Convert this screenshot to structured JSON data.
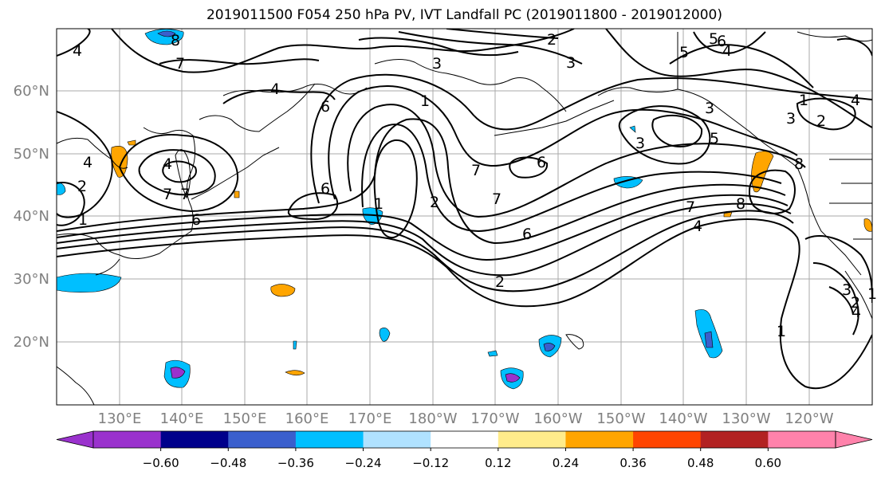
{
  "title": "2019011500 F054 250 hPa PV, IVT Landfall PC (2019011800 - 2019012000)",
  "map": {
    "lon_ticks": [
      "130°E",
      "140°E",
      "150°E",
      "160°E",
      "170°E",
      "180°W",
      "170°W",
      "160°W",
      "150°W",
      "140°W",
      "130°W",
      "120°W"
    ],
    "lat_ticks": [
      "60°N",
      "50°N",
      "40°N",
      "30°N",
      "20°N"
    ],
    "contour_color": "#000000",
    "grid": true,
    "contour_labels": [
      "2",
      "4",
      "3",
      "3",
      "1",
      "5",
      "4",
      "7",
      "8",
      "7",
      "4",
      "6",
      "1",
      "2",
      "6",
      "6",
      "7",
      "7",
      "6",
      "2",
      "4",
      "3",
      "5",
      "3",
      "8",
      "7",
      "4",
      "2",
      "1",
      "1",
      "4",
      "1",
      "2",
      "3",
      "2",
      "1",
      "4",
      "3",
      "5",
      "6",
      "6",
      "7",
      "8",
      "4"
    ]
  },
  "colorbar": {
    "colors": [
      "#9a32cd",
      "#00008b",
      "#3a5fcd",
      "#00bfff",
      "#b0e2ff",
      "#ffffff",
      "#ffec8b",
      "#ffa500",
      "#ff4500",
      "#b22222",
      "#ff82ab"
    ],
    "labels": [
      "−0.60",
      "−0.48",
      "−0.36",
      "−0.24",
      "−0.12",
      "0.12",
      "0.24",
      "0.36",
      "0.48",
      "0.60"
    ]
  }
}
